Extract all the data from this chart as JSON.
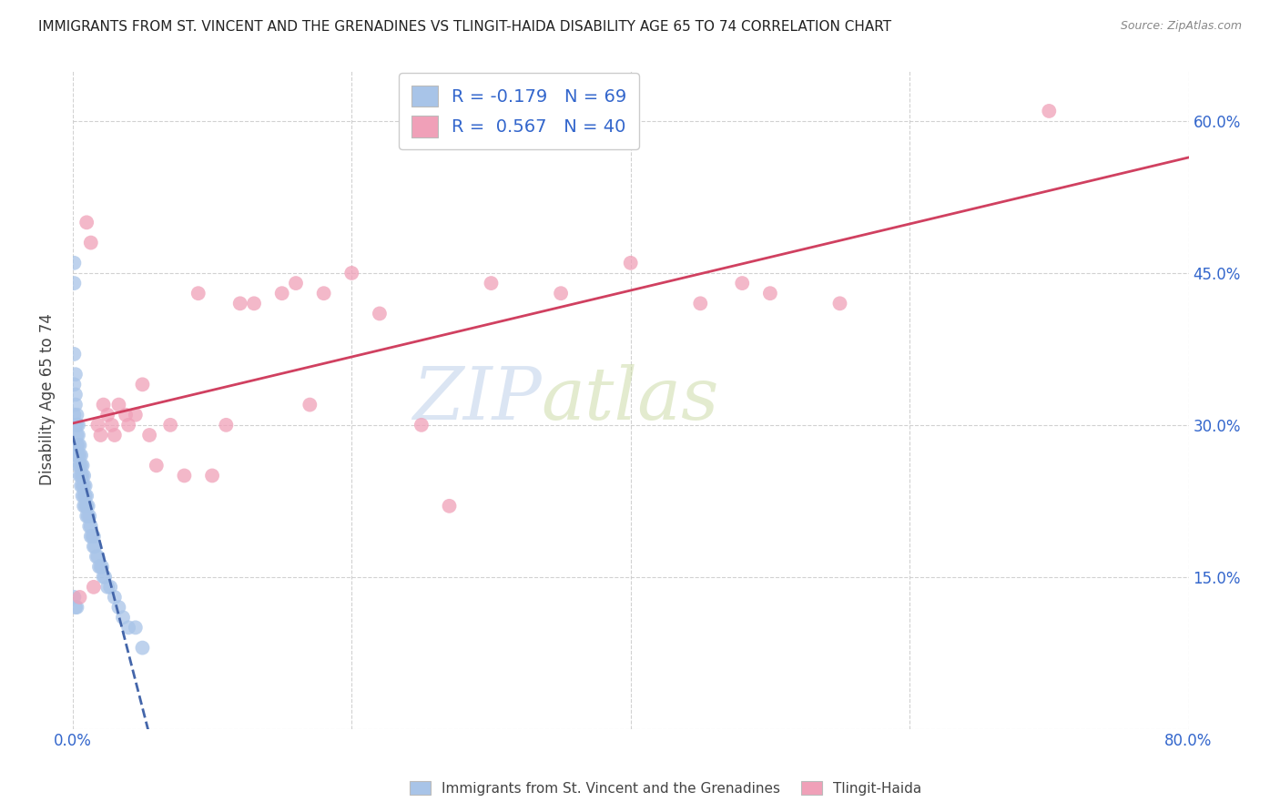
{
  "title": "IMMIGRANTS FROM ST. VINCENT AND THE GRENADINES VS TLINGIT-HAIDA DISABILITY AGE 65 TO 74 CORRELATION CHART",
  "source": "Source: ZipAtlas.com",
  "ylabel": "Disability Age 65 to 74",
  "xlim": [
    0.0,
    0.8
  ],
  "ylim": [
    0.0,
    0.65
  ],
  "yticks": [
    0.0,
    0.15,
    0.3,
    0.45,
    0.6
  ],
  "ytick_labels_right": [
    "",
    "15.0%",
    "30.0%",
    "45.0%",
    "60.0%"
  ],
  "xticks": [
    0.0,
    0.2,
    0.4,
    0.6,
    0.8
  ],
  "xtick_labels": [
    "0.0%",
    "",
    "",
    "",
    "80.0%"
  ],
  "blue_color": "#a8c4e8",
  "pink_color": "#f0a0b8",
  "blue_line_color": "#4466aa",
  "pink_line_color": "#d04060",
  "watermark_zip": "ZIP",
  "watermark_atlas": "atlas",
  "blue_scatter_x": [
    0.001,
    0.001,
    0.001,
    0.001,
    0.001,
    0.002,
    0.002,
    0.002,
    0.002,
    0.003,
    0.003,
    0.003,
    0.003,
    0.003,
    0.004,
    0.004,
    0.004,
    0.004,
    0.004,
    0.005,
    0.005,
    0.005,
    0.005,
    0.006,
    0.006,
    0.006,
    0.006,
    0.007,
    0.007,
    0.007,
    0.007,
    0.008,
    0.008,
    0.008,
    0.008,
    0.009,
    0.009,
    0.009,
    0.01,
    0.01,
    0.01,
    0.011,
    0.011,
    0.012,
    0.012,
    0.013,
    0.013,
    0.014,
    0.015,
    0.015,
    0.016,
    0.017,
    0.018,
    0.019,
    0.02,
    0.021,
    0.022,
    0.023,
    0.025,
    0.027,
    0.03,
    0.033,
    0.036,
    0.04,
    0.045,
    0.05,
    0.001,
    0.002,
    0.003
  ],
  "blue_scatter_y": [
    0.46,
    0.44,
    0.37,
    0.34,
    0.31,
    0.35,
    0.33,
    0.32,
    0.3,
    0.31,
    0.3,
    0.29,
    0.28,
    0.27,
    0.3,
    0.29,
    0.28,
    0.27,
    0.26,
    0.28,
    0.27,
    0.26,
    0.25,
    0.27,
    0.26,
    0.25,
    0.24,
    0.26,
    0.25,
    0.24,
    0.23,
    0.25,
    0.24,
    0.23,
    0.22,
    0.24,
    0.23,
    0.22,
    0.23,
    0.22,
    0.21,
    0.22,
    0.21,
    0.21,
    0.2,
    0.2,
    0.19,
    0.19,
    0.19,
    0.18,
    0.18,
    0.17,
    0.17,
    0.16,
    0.16,
    0.16,
    0.15,
    0.15,
    0.14,
    0.14,
    0.13,
    0.12,
    0.11,
    0.1,
    0.1,
    0.08,
    0.13,
    0.12,
    0.12
  ],
  "pink_scatter_x": [
    0.005,
    0.01,
    0.013,
    0.015,
    0.018,
    0.02,
    0.022,
    0.025,
    0.028,
    0.03,
    0.033,
    0.038,
    0.04,
    0.045,
    0.05,
    0.055,
    0.06,
    0.07,
    0.08,
    0.09,
    0.1,
    0.11,
    0.12,
    0.13,
    0.15,
    0.16,
    0.17,
    0.18,
    0.2,
    0.22,
    0.25,
    0.27,
    0.3,
    0.35,
    0.4,
    0.45,
    0.48,
    0.5,
    0.55,
    0.7
  ],
  "pink_scatter_y": [
    0.13,
    0.5,
    0.48,
    0.14,
    0.3,
    0.29,
    0.32,
    0.31,
    0.3,
    0.29,
    0.32,
    0.31,
    0.3,
    0.31,
    0.34,
    0.29,
    0.26,
    0.3,
    0.25,
    0.43,
    0.25,
    0.3,
    0.42,
    0.42,
    0.43,
    0.44,
    0.32,
    0.43,
    0.45,
    0.41,
    0.3,
    0.22,
    0.44,
    0.43,
    0.46,
    0.42,
    0.44,
    0.43,
    0.42,
    0.61
  ]
}
